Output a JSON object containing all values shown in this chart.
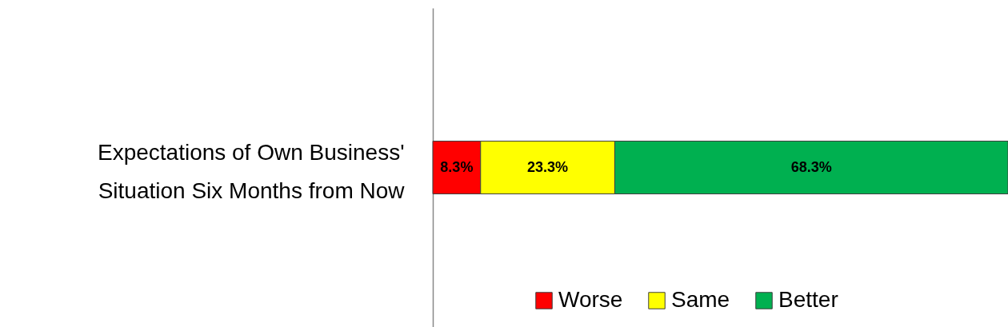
{
  "chart_data": {
    "type": "bar",
    "orientation": "horizontal",
    "stacked": true,
    "categories": [
      "Expectations of Own Business'\nSituation Six Months from Now"
    ],
    "series": [
      {
        "name": "Worse",
        "color": "#ff0000",
        "values": [
          8.3
        ],
        "value_labels": [
          "8.3%"
        ]
      },
      {
        "name": "Same",
        "color": "#ffff00",
        "values": [
          23.3
        ],
        "value_labels": [
          "23.3%"
        ]
      },
      {
        "name": "Better",
        "color": "#00b050",
        "values": [
          68.3
        ],
        "value_labels": [
          "68.3%"
        ]
      }
    ],
    "xlim": [
      0,
      99.9
    ],
    "tick_labels": "y",
    "legend": "bottom"
  }
}
